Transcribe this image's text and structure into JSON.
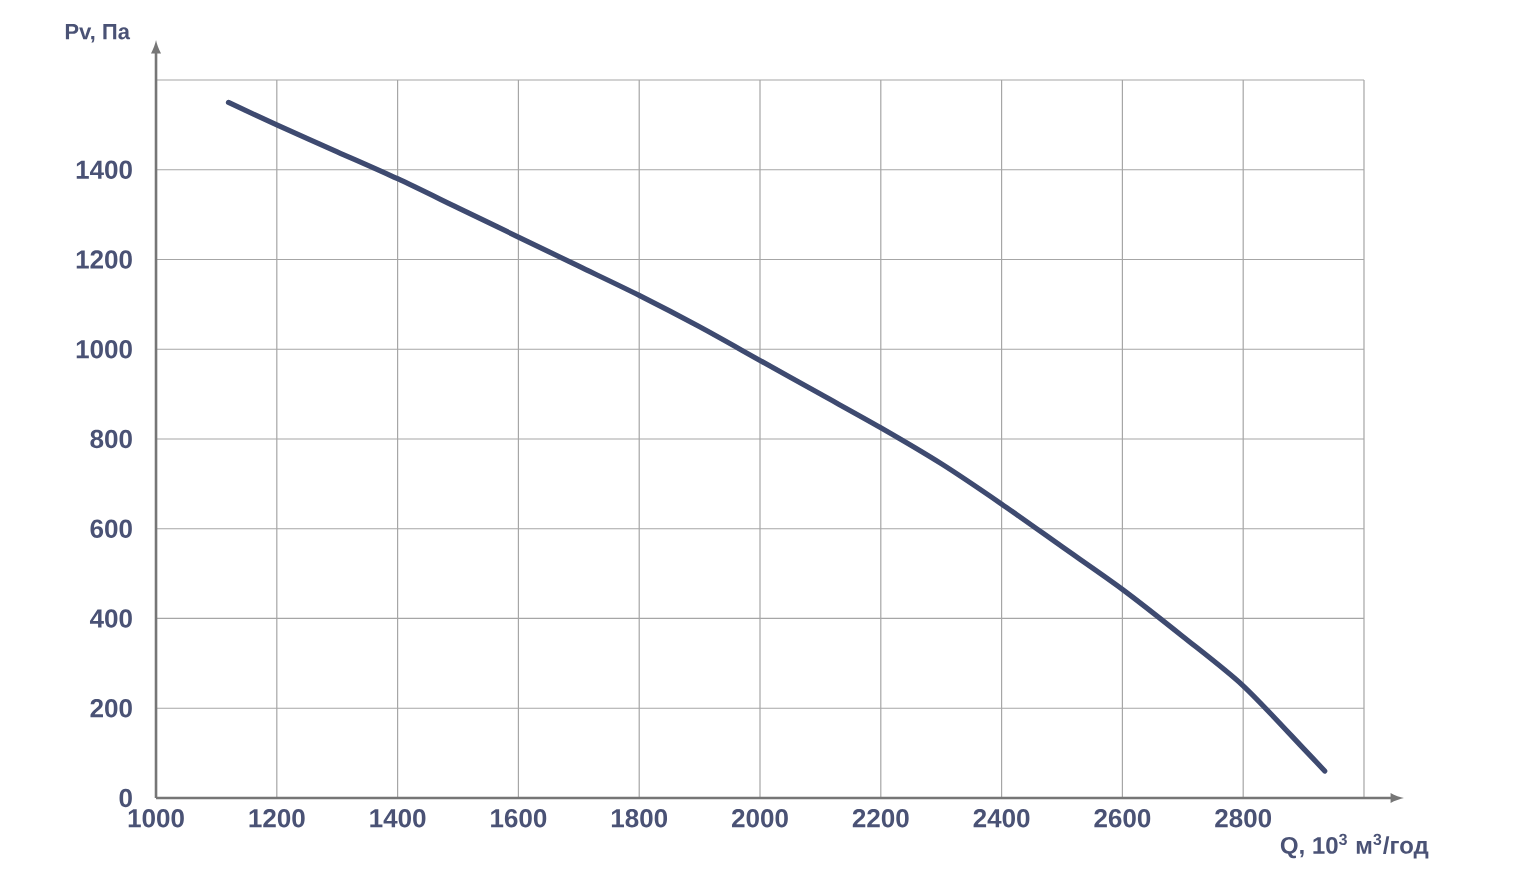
{
  "chart_data": {
    "type": "line",
    "xlabel": "Q, 10$^{3}$ м$^{3}$/год",
    "ylabel": "Pv, Па",
    "x": [
      1120,
      1200,
      1300,
      1400,
      1500,
      1600,
      1700,
      1800,
      1900,
      2000,
      2100,
      2200,
      2300,
      2400,
      2500,
      2600,
      2700,
      2800,
      2900,
      2935
    ],
    "values": [
      1550,
      1500,
      1440,
      1380,
      1315,
      1250,
      1185,
      1120,
      1050,
      975,
      900,
      825,
      745,
      655,
      560,
      465,
      360,
      250,
      110,
      60
    ],
    "color": "#3e4a70",
    "xlim": [
      1000,
      3000
    ],
    "ylim": [
      0,
      1600
    ],
    "xticks": [
      1000,
      1200,
      1400,
      1600,
      1800,
      2000,
      2200,
      2400,
      2600,
      2800,
      {
        "value": 3000,
        "label": null
      }
    ],
    "yticks": [
      0,
      200,
      400,
      600,
      800,
      1000,
      1200,
      1400,
      {
        "value": 1600,
        "label": null
      }
    ],
    "grid": true
  }
}
